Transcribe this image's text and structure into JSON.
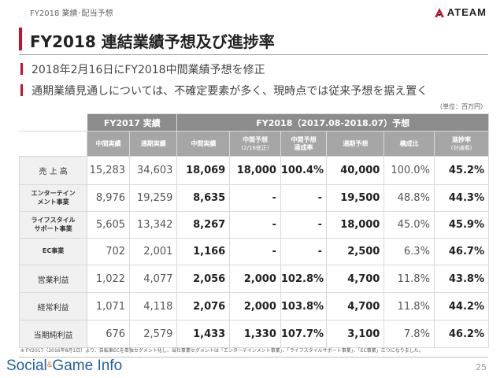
{
  "header": {
    "crumb": "FY2018 業績･配当予想",
    "logo_text": "ATEAM",
    "title": "FY2018 連結業績予想及び進捗率"
  },
  "bullets": [
    "2018年2月16日にFY2018中間業績予想を修正",
    "通期業績見通しについては、不確定要素が多く、現時点では従来予想を据え置く"
  ],
  "unit_note": "（単位：百万円）",
  "table": {
    "group_fy2017": "FY2017 実績",
    "group_fy2018": "FY2018（2017.08-2018.07）予想",
    "cols": {
      "c1": "中間実績",
      "c2": "通期実績",
      "c3": "中間実績",
      "c4_main": "中間予想",
      "c4_sub": "(2/16修正)",
      "c5_l1": "中間予想",
      "c5_l2": "達成率",
      "c6": "通期予想",
      "c7": "構成比",
      "c8_main": "進捗率",
      "c8_sub": "(対通期)"
    },
    "rows": [
      {
        "label": [
          "売 上 高"
        ],
        "v": [
          "15,283",
          "34,603",
          "18,069",
          "18,000",
          "100.4%",
          "40,000",
          "100.0%",
          "45.2%"
        ]
      },
      {
        "label": [
          "エンターテイン",
          "メント事業"
        ],
        "v": [
          "8,976",
          "19,259",
          "8,635",
          "-",
          "-",
          "19,500",
          "48.8%",
          "44.3%"
        ]
      },
      {
        "label": [
          "ライフスタイル",
          "サポート事業"
        ],
        "v": [
          "5,605",
          "13,342",
          "8,267",
          "-",
          "-",
          "18,000",
          "45.0%",
          "45.9%"
        ]
      },
      {
        "label": [
          "EC事業"
        ],
        "v": [
          "702",
          "2,001",
          "1,166",
          "-",
          "-",
          "2,500",
          "6.3%",
          "46.7%"
        ]
      },
      {
        "label": [
          "営業利益"
        ],
        "v": [
          "1,022",
          "4,077",
          "2,056",
          "2,000",
          "102.8%",
          "4,700",
          "11.8%",
          "43.8%"
        ]
      },
      {
        "label": [
          "経常利益"
        ],
        "v": [
          "1,071",
          "4,118",
          "2,076",
          "2,000",
          "103.8%",
          "4,700",
          "11.8%",
          "44.2%"
        ]
      },
      {
        "label": [
          "当期純利益"
        ],
        "v": [
          "676",
          "2,579",
          "1,433",
          "1,330",
          "107.7%",
          "3,100",
          "7.8%",
          "46.2%"
        ]
      }
    ]
  },
  "footnote": "※ FY2017（2016年8月1日）より、自転車ECを単独セグメント化し、当社事業セグメントは「エンターテインメント事業」、「ライフスタイルサポート事業」、「EC事業」三つになりました。",
  "footer": {
    "brand_a": "Social",
    "brand_amp": "&",
    "brand_b": "Game",
    "brand_c": " Info",
    "page_number": "25"
  },
  "colors": {
    "accent": "#c8102e",
    "header_dark": "#8c8c8c",
    "header_light": "#a6a6a6",
    "label_bg": "#f0f0f0",
    "brand": "#1f5fa8"
  }
}
